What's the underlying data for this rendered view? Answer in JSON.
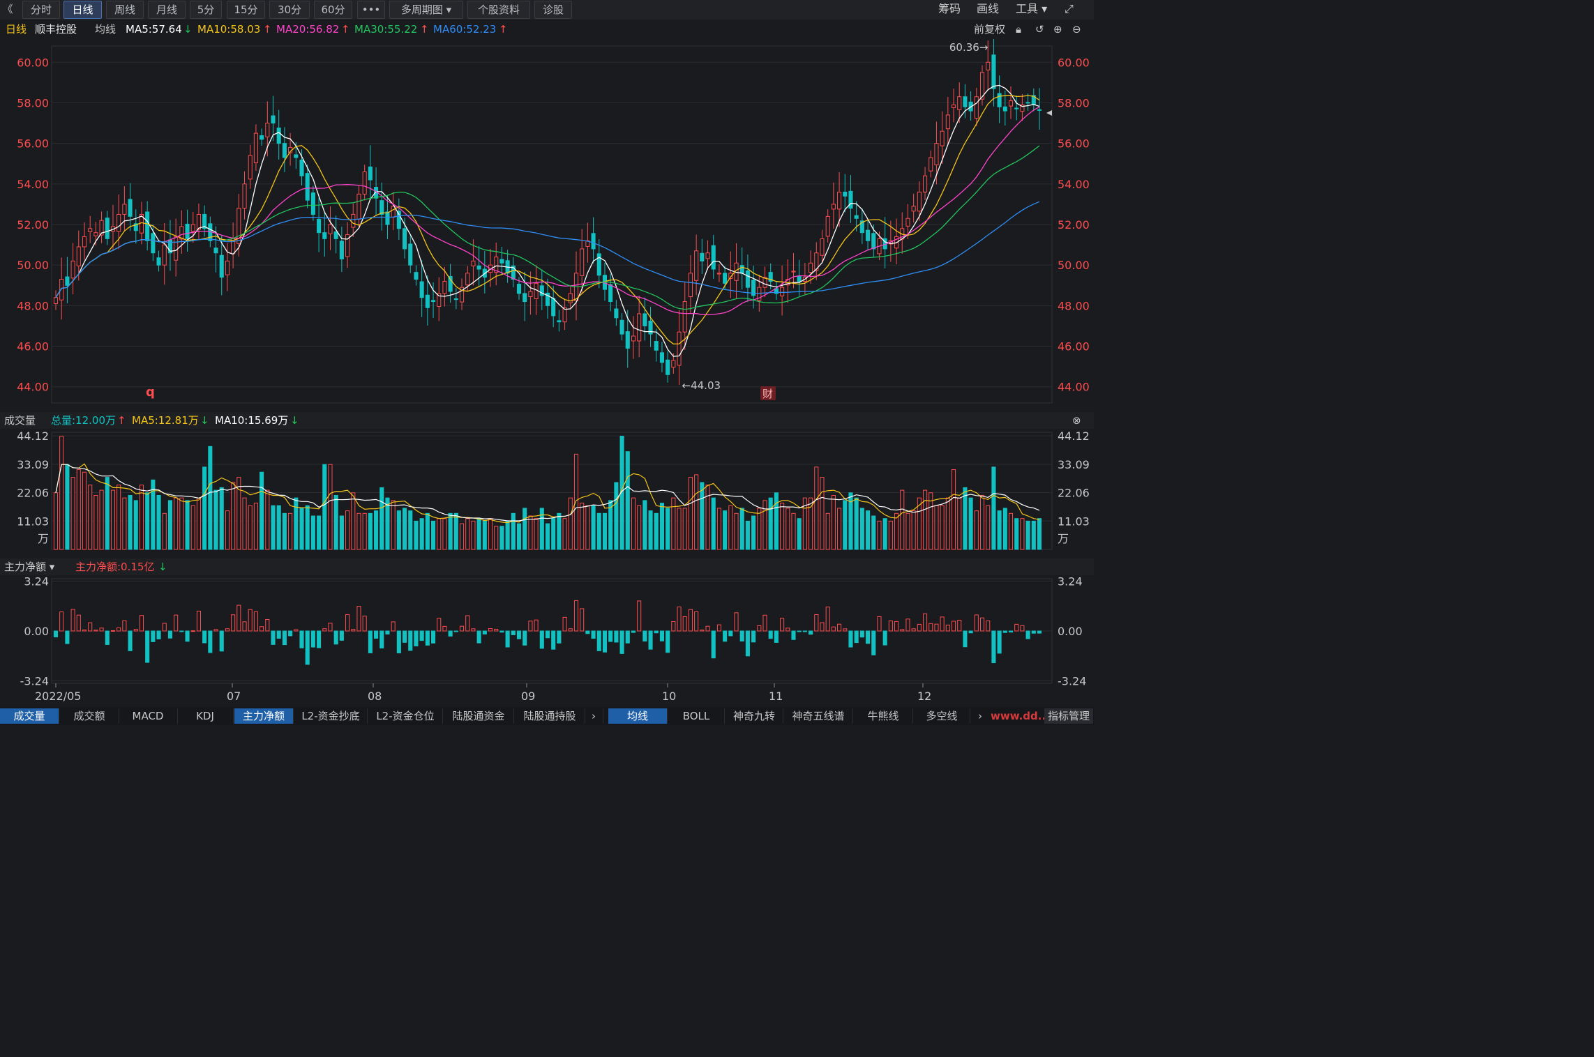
{
  "toolbar": {
    "back_glyph": "《",
    "tabs": [
      "分时",
      "日线",
      "周线",
      "月线",
      "5分",
      "15分",
      "30分",
      "60分",
      "•••",
      "多周期图 ▾",
      "个股资料",
      "诊股"
    ],
    "right_items": [
      "筹码",
      "画线",
      "工具 ▾"
    ],
    "fullscreen_glyph": "⤢"
  },
  "info": {
    "period": "日线",
    "stock_name": "顺丰控股",
    "ma_label": "均线",
    "ma5": "MA5:57.64",
    "ma10": "MA10:58.03",
    "ma20": "MA20:56.82",
    "ma30": "MA30:55.22",
    "ma60": "MA60:52.23",
    "adjust": "前复权"
  },
  "colors": {
    "up": "#ff4d4f",
    "down": "#12c2c2",
    "ma5": "#ffffff",
    "ma10": "#f5c518",
    "ma20": "#ff44cc",
    "ma30": "#22c55e",
    "ma60": "#2f8ef5"
  },
  "price_axis": {
    "ticks": [
      "60.00",
      "58.00",
      "56.00",
      "54.00",
      "52.00",
      "50.00",
      "48.00",
      "46.00",
      "44.00"
    ],
    "high_label": "60.36→",
    "low_label": "←44.03",
    "mark_q": "q",
    "mark_cai": "财"
  },
  "volume": {
    "title": "成交量",
    "total": "总量:12.00万",
    "ma5": "MA5:12.81万",
    "ma10": "MA10:15.69万",
    "ticks": [
      "44.12",
      "33.09",
      "22.06",
      "11.03",
      "万"
    ]
  },
  "netflow": {
    "title": "主力净额 ▾",
    "value": "主力净额:0.15亿",
    "ticks": [
      "3.24",
      "0.00",
      "-3.24"
    ]
  },
  "x_axis": [
    "2022/05",
    "07",
    "08",
    "09",
    "10",
    "11",
    "12"
  ],
  "bottom_tabs_left": [
    "成交量",
    "成交额",
    "MACD",
    "KDJ",
    "主力净额",
    "L2-资金抄底",
    "L2-资金仓位",
    "陆股通资金",
    "陆股通持股"
  ],
  "bottom_tabs_right": [
    "均线",
    "BOLL",
    "神奇九转",
    "神奇五线谱",
    "牛熊线",
    "多空线"
  ],
  "bottom_last": "指标管理",
  "watermark": "www.dd...com",
  "chart_data": {
    "type": "candlestick",
    "ylim": [
      43.2,
      60.8
    ],
    "high": 60.36,
    "low": 44.03,
    "closes": [
      48.4,
      49.3,
      49.0,
      50.2,
      50.9,
      51.4,
      51.8,
      51.6,
      52.2,
      51.3,
      51.9,
      52.5,
      53.0,
      52.4,
      51.7,
      52.5,
      51.2,
      50.6,
      50.0,
      51.0,
      50.6,
      51.4,
      51.9,
      51.3,
      52.0,
      52.5,
      51.8,
      51.2,
      50.6,
      49.4,
      50.2,
      51.3,
      52.8,
      54.0,
      55.4,
      56.5,
      56.2,
      57.0,
      57.0,
      56.0,
      55.3,
      55.8,
      55.3,
      54.4,
      53.2,
      52.5,
      51.6,
      51.3,
      52.0,
      51.3,
      50.3,
      51.5,
      52.5,
      53.5,
      54.6,
      54.2,
      53.3,
      52.5,
      52.0,
      52.9,
      51.8,
      50.8,
      50.0,
      49.3,
      48.4,
      47.9,
      48.2,
      48.6,
      49.2,
      48.7,
      48.3,
      48.9,
      49.6,
      50.2,
      49.8,
      49.4,
      50.0,
      50.4,
      50.1,
      49.6,
      49.3,
      48.6,
      48.2,
      48.7,
      49.1,
      48.5,
      48.0,
      47.5,
      47.2,
      47.9,
      48.6,
      49.6,
      50.8,
      51.2,
      50.8,
      49.5,
      48.8,
      48.2,
      47.4,
      46.6,
      45.9,
      46.5,
      47.6,
      47.0,
      46.6,
      45.8,
      45.2,
      44.6,
      45.3,
      46.7,
      48.2,
      49.6,
      50.7,
      50.2,
      50.6,
      49.8,
      49.6,
      49.1,
      49.6,
      50.1,
      49.6,
      48.9,
      48.5,
      48.9,
      49.4,
      49.2,
      48.6,
      48.9,
      49.3,
      49.7,
      49.2,
      49.4,
      50.1,
      50.6,
      51.3,
      52.4,
      53.0,
      53.6,
      53.4,
      52.8,
      52.3,
      51.6,
      51.2,
      50.8,
      51.3,
      50.8,
      51.2,
      51.4,
      51.8,
      52.3,
      52.9,
      53.6,
      54.4,
      55.3,
      56.0,
      56.6,
      57.4,
      57.9,
      58.3,
      57.8,
      57.6,
      58.3,
      59.5,
      60.0,
      58.7,
      57.8,
      57.6,
      58.1,
      57.7,
      57.9,
      58.0,
      57.9,
      57.64
    ],
    "volume_wan_sample": [
      22,
      44,
      33,
      28,
      31,
      30,
      25,
      21,
      23,
      28,
      23,
      25,
      20,
      21,
      19,
      25,
      22,
      27,
      21,
      14,
      19,
      20,
      20,
      19,
      17,
      20,
      32,
      40,
      23,
      24,
      15,
      26,
      28,
      20,
      17,
      18,
      30,
      23,
      17,
      17,
      14,
      14,
      20,
      16,
      17,
      13,
      13,
      33,
      33,
      21,
      13,
      15,
      22,
      14,
      14,
      14,
      15,
      24,
      20,
      19,
      15,
      16,
      15,
      11,
      12,
      14,
      11,
      12,
      12,
      14,
      14,
      10,
      12,
      11,
      12,
      11,
      12,
      9,
      9,
      11,
      14,
      10,
      16,
      13,
      12,
      16,
      10,
      12,
      14,
      12,
      20,
      37,
      18,
      17,
      17,
      14,
      14,
      19,
      26,
      44,
      38,
      20,
      17,
      19,
      15,
      14,
      18,
      16,
      20,
      16,
      16,
      28,
      29,
      26,
      25,
      20,
      16,
      15,
      17,
      14,
      16,
      11,
      13,
      16,
      19,
      20,
      22,
      18,
      16,
      14,
      12,
      20,
      20,
      32,
      28,
      14,
      21,
      16,
      19,
      22,
      20,
      16,
      15,
      13,
      11,
      12,
      11,
      14,
      23,
      14,
      15,
      20,
      23,
      22,
      17,
      17,
      20,
      31,
      20,
      24,
      20,
      15,
      21,
      17,
      32,
      15,
      16,
      14,
      12,
      12,
      11,
      11,
      12
    ]
  }
}
